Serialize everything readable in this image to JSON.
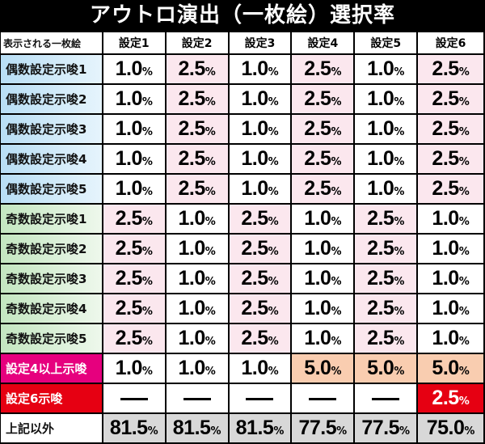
{
  "title": "アウトロ演出（一枚絵）選択率",
  "header": {
    "label": "表示される一枚絵",
    "columns": [
      "設定1",
      "設定2",
      "設定3",
      "設定4",
      "設定5",
      "設定6"
    ]
  },
  "rows": [
    {
      "label": "偶数設定示唆1",
      "type": "even",
      "values": [
        "1.0",
        "2.5",
        "1.0",
        "2.5",
        "1.0",
        "2.5"
      ]
    },
    {
      "label": "偶数設定示唆2",
      "type": "even",
      "values": [
        "1.0",
        "2.5",
        "1.0",
        "2.5",
        "1.0",
        "2.5"
      ]
    },
    {
      "label": "偶数設定示唆3",
      "type": "even",
      "values": [
        "1.0",
        "2.5",
        "1.0",
        "2.5",
        "1.0",
        "2.5"
      ]
    },
    {
      "label": "偶数設定示唆4",
      "type": "even",
      "values": [
        "1.0",
        "2.5",
        "1.0",
        "2.5",
        "1.0",
        "2.5"
      ]
    },
    {
      "label": "偶数設定示唆5",
      "type": "even",
      "values": [
        "1.0",
        "2.5",
        "1.0",
        "2.5",
        "1.0",
        "2.5"
      ]
    },
    {
      "label": "奇数設定示唆1",
      "type": "odd",
      "values": [
        "2.5",
        "1.0",
        "2.5",
        "1.0",
        "2.5",
        "1.0"
      ]
    },
    {
      "label": "奇数設定示唆2",
      "type": "odd",
      "values": [
        "2.5",
        "1.0",
        "2.5",
        "1.0",
        "2.5",
        "1.0"
      ]
    },
    {
      "label": "奇数設定示唆3",
      "type": "odd",
      "values": [
        "2.5",
        "1.0",
        "2.5",
        "1.0",
        "2.5",
        "1.0"
      ]
    },
    {
      "label": "奇数設定示唆4",
      "type": "odd",
      "values": [
        "2.5",
        "1.0",
        "2.5",
        "1.0",
        "2.5",
        "1.0"
      ]
    },
    {
      "label": "奇数設定示唆5",
      "type": "odd",
      "values": [
        "2.5",
        "1.0",
        "2.5",
        "1.0",
        "2.5",
        "1.0"
      ]
    },
    {
      "label": "設定4以上示唆",
      "type": "s4",
      "values": [
        "1.0",
        "1.0",
        "1.0",
        "5.0",
        "5.0",
        "5.0"
      ]
    },
    {
      "label": "設定6示唆",
      "type": "s6",
      "values": [
        null,
        null,
        null,
        null,
        null,
        "2.5"
      ]
    },
    {
      "label": "上記以外",
      "type": "other",
      "values": [
        "81.5",
        "81.5",
        "81.5",
        "77.5",
        "77.5",
        "75.0"
      ]
    }
  ],
  "percent_sign": "%",
  "colors": {
    "even_label": "#b8def5",
    "odd_label": "#c3e6c0",
    "s4_label": "#e6007e",
    "s6_label": "#e60012",
    "highlight": "#fbe7ee",
    "highlight_orange": "#f9cdb0",
    "other_cells": "#d8d8d8"
  }
}
